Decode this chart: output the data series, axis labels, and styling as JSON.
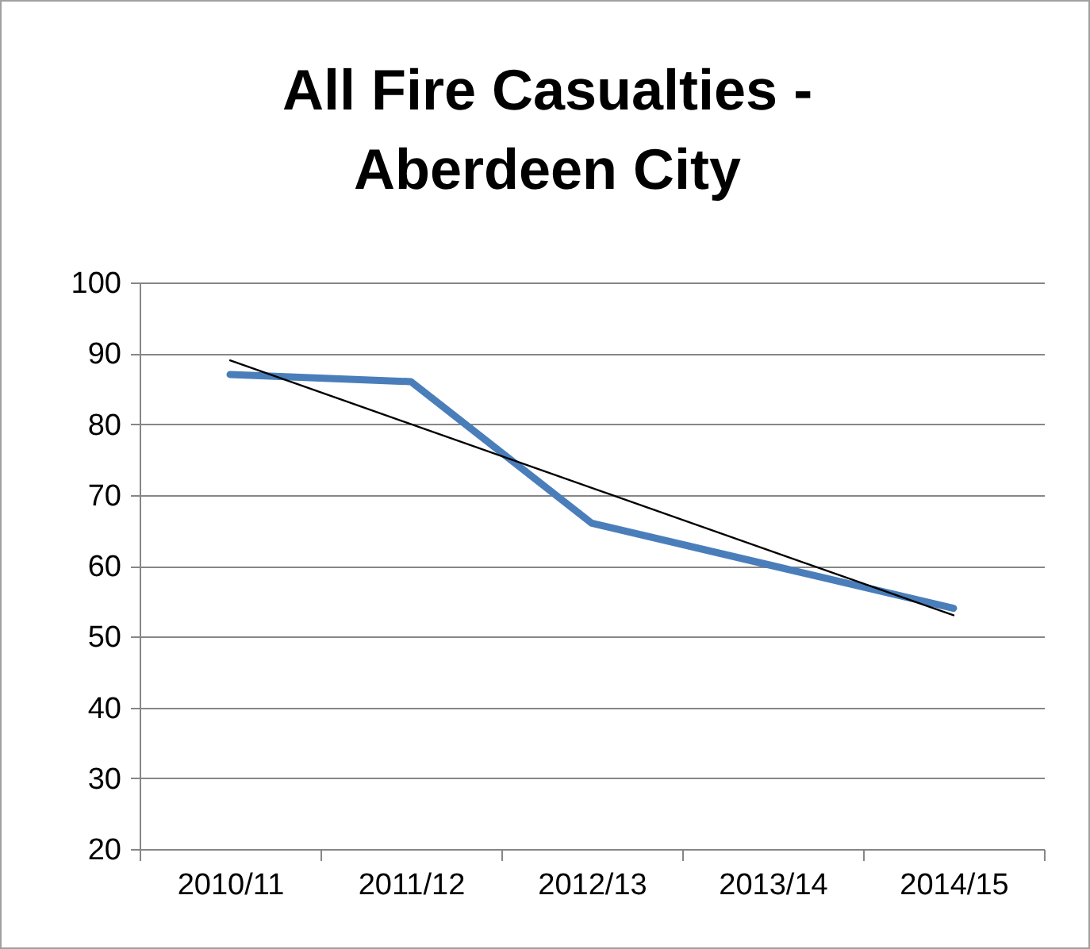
{
  "chart_data": {
    "type": "line",
    "title": "All Fire Casualties - Aberdeen City",
    "categories": [
      "2010/11",
      "2011/12",
      "2012/13",
      "2013/14",
      "2014/15"
    ],
    "series": [
      {
        "color": "#4a7ebb",
        "values": [
          87,
          86,
          66,
          60,
          54
        ]
      },
      {
        "type": "line",
        "color": "#000000",
        "x": [
          "2010/11",
          "2014/15"
        ],
        "values": [
          89,
          53
        ]
      }
    ],
    "ylim": [
      20,
      100
    ],
    "yticks": [
      20,
      30,
      40,
      50,
      60,
      70,
      80,
      90,
      100
    ],
    "grid": "y",
    "marker": "none",
    "line_style": "solid"
  }
}
